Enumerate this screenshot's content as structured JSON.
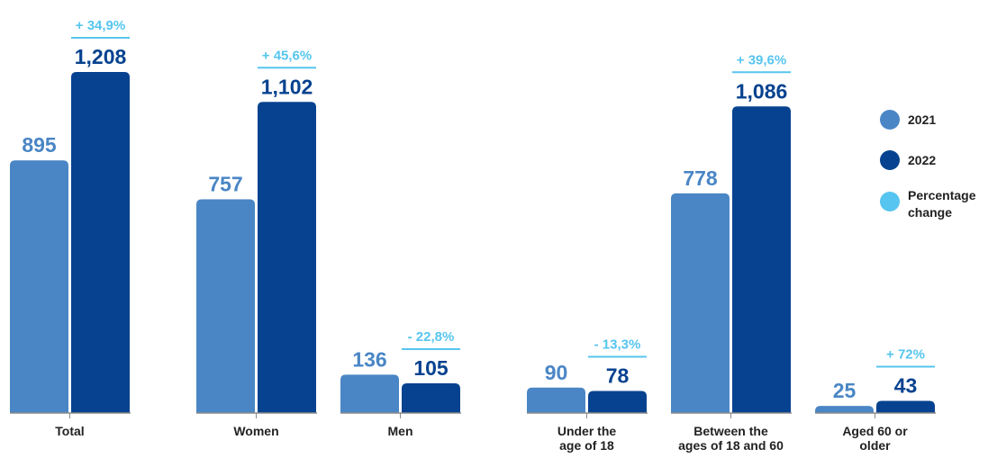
{
  "chart_data": {
    "type": "bar",
    "title": "",
    "xlabel": "",
    "ylabel": "",
    "ylim": [
      0,
      1300
    ],
    "grid": false,
    "legend_position": "right",
    "categories": [
      [
        "Total"
      ],
      [
        "Women"
      ],
      [
        "Men"
      ],
      [
        "Under the",
        "age of 18"
      ],
      [
        "Between the",
        "ages of 18 and 60"
      ],
      [
        "Aged 60 or",
        "older"
      ]
    ],
    "series": [
      {
        "name": "2021",
        "color": "#4a86c5",
        "values": [
          895,
          757,
          136,
          90,
          778,
          25
        ],
        "labels": [
          "895",
          "757",
          "136",
          "90",
          "778",
          "25"
        ]
      },
      {
        "name": "2022",
        "color": "#06428f",
        "values": [
          1208,
          1102,
          105,
          78,
          1086,
          43
        ],
        "labels": [
          "1,208",
          "1,102",
          "105",
          "78",
          "1,086",
          "43"
        ]
      }
    ],
    "percentage_change": {
      "name": "Percentage change",
      "color": "#56c5ef",
      "values": [
        "+ 34,9%",
        "+ 45,6%",
        "- 22,8%",
        "- 13,3%",
        "+ 39,6%",
        "+ 72%"
      ]
    }
  }
}
